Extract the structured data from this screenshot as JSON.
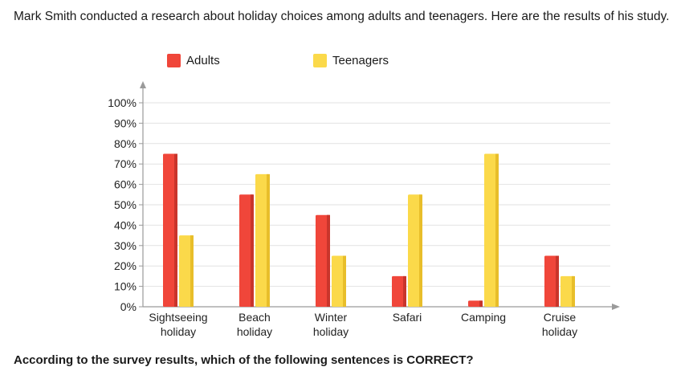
{
  "intro_text": "Mark Smith conducted a research about holiday choices among adults and teenagers. Here are the results of his study.",
  "question_text": "According to the survey results, which of the following sentences is CORRECT?",
  "colors": {
    "adults_front": "#f0463a",
    "adults_side": "#c9352b",
    "teens_front": "#fbd94a",
    "teens_side": "#e8be2a",
    "grid": "#e2e2e2",
    "axis": "#9a9a9a"
  },
  "chart_data": {
    "type": "bar",
    "title": "",
    "xlabel": "",
    "ylabel": "",
    "ylim": [
      0,
      100
    ],
    "ytick_labels": [
      "0%",
      "10%",
      "20%",
      "30%",
      "40%",
      "50%",
      "60%",
      "70%",
      "80%",
      "90%",
      "100%"
    ],
    "categories": [
      [
        "Sightseeing",
        "holiday"
      ],
      [
        "Beach",
        "holiday"
      ],
      [
        "Winter",
        "holiday"
      ],
      [
        "Safari"
      ],
      [
        "Camping"
      ],
      [
        "Cruise",
        "holiday"
      ]
    ],
    "series": [
      {
        "name": "Adults",
        "values": [
          75,
          55,
          45,
          15,
          3,
          25
        ]
      },
      {
        "name": "Teenagers",
        "values": [
          35,
          65,
          25,
          55,
          75,
          15
        ]
      }
    ],
    "legend_position": "top",
    "grid": true
  }
}
